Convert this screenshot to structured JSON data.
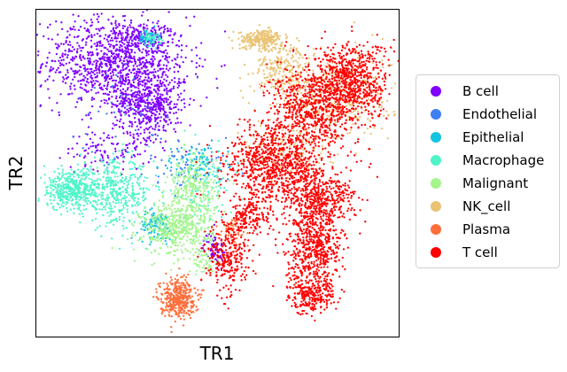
{
  "chart_data": {
    "type": "scatter",
    "title": "",
    "xlabel": "TR1",
    "ylabel": "TR2",
    "xticks": false,
    "yticks": false,
    "grid": false,
    "xlim": [
      0,
      100
    ],
    "ylim": [
      0,
      100
    ],
    "legend_position": "right",
    "legend": [
      {
        "name": "B cell",
        "color": "#7f00ff"
      },
      {
        "name": "Endothelial",
        "color": "#3e7ff4"
      },
      {
        "name": "Epithelial",
        "color": "#13c4e0"
      },
      {
        "name": "Macrophage",
        "color": "#4ff5c9"
      },
      {
        "name": "Malignant",
        "color": "#a4f58e"
      },
      {
        "name": "NK_cell",
        "color": "#e9c374"
      },
      {
        "name": "Plasma",
        "color": "#ff6e3b"
      },
      {
        "name": "T cell",
        "color": "#ff0000"
      }
    ],
    "series": [
      {
        "name": "B cell",
        "color": "#7f00ff",
        "clusters": [
          {
            "cx": 22,
            "cy": 84,
            "sx": 10,
            "sy": 7,
            "n": 1100
          },
          {
            "cx": 31,
            "cy": 71,
            "sx": 5,
            "sy": 5,
            "n": 500
          },
          {
            "cx": 20,
            "cy": 57,
            "sx": 6,
            "sy": 3,
            "n": 110
          },
          {
            "cx": 49,
            "cy": 27,
            "sx": 1.4,
            "sy": 2.5,
            "n": 80
          },
          {
            "cx": 30,
            "cy": 91,
            "sx": 4,
            "sy": 3,
            "n": 120
          }
        ]
      },
      {
        "name": "Endothelial",
        "color": "#3e7ff4",
        "clusters": [
          {
            "cx": 31,
            "cy": 91,
            "sx": 1.2,
            "sy": 1,
            "n": 35
          },
          {
            "cx": 43,
            "cy": 53,
            "sx": 6,
            "sy": 4,
            "n": 70
          },
          {
            "cx": 25,
            "cy": 70,
            "sx": 8,
            "sy": 8,
            "n": 40
          }
        ]
      },
      {
        "name": "Epithelial",
        "color": "#13c4e0",
        "clusters": [
          {
            "cx": 33,
            "cy": 34,
            "sx": 2.5,
            "sy": 2.2,
            "n": 120
          },
          {
            "cx": 45,
            "cy": 53,
            "sx": 5,
            "sy": 3,
            "n": 90
          },
          {
            "cx": 31,
            "cy": 92,
            "sx": 1.2,
            "sy": 1,
            "n": 40
          }
        ]
      },
      {
        "name": "Macrophage",
        "color": "#4ff5c9",
        "clusters": [
          {
            "cx": 10,
            "cy": 45,
            "sx": 5,
            "sy": 3,
            "n": 450
          },
          {
            "cx": 22,
            "cy": 44,
            "sx": 5,
            "sy": 5,
            "n": 380
          },
          {
            "cx": 45,
            "cy": 45,
            "sx": 4.5,
            "sy": 6,
            "n": 110
          },
          {
            "cx": 32,
            "cy": 91,
            "sx": 1.2,
            "sy": 1,
            "n": 45
          }
        ]
      },
      {
        "name": "Malignant",
        "color": "#a4f58e",
        "clusters": [
          {
            "cx": 39,
            "cy": 33,
            "sx": 5,
            "sy": 4,
            "n": 480
          },
          {
            "cx": 43,
            "cy": 45,
            "sx": 3.5,
            "sy": 5,
            "n": 280
          },
          {
            "cx": 47,
            "cy": 22,
            "sx": 2,
            "sy": 2,
            "n": 50
          }
        ]
      },
      {
        "name": "NK_cell",
        "color": "#e9c374",
        "clusters": [
          {
            "cx": 62,
            "cy": 91,
            "sx": 3,
            "sy": 1.4,
            "n": 240
          },
          {
            "cx": 68,
            "cy": 82,
            "sx": 4,
            "sy": 4,
            "n": 220
          },
          {
            "cx": 82,
            "cy": 73,
            "sx": 8,
            "sy": 7,
            "n": 360
          },
          {
            "cx": 70,
            "cy": 57,
            "sx": 6,
            "sy": 5,
            "n": 120
          }
        ]
      },
      {
        "name": "Plasma",
        "color": "#ff6e3b",
        "clusters": [
          {
            "cx": 39,
            "cy": 12,
            "sx": 2.4,
            "sy": 3,
            "n": 380
          },
          {
            "cx": 54,
            "cy": 32,
            "sx": 2,
            "sy": 2.5,
            "n": 60
          }
        ]
      },
      {
        "name": "T cell",
        "color": "#ff0000",
        "clusters": [
          {
            "cx": 87,
            "cy": 78,
            "sx": 5,
            "sy": 6,
            "n": 700
          },
          {
            "cx": 76,
            "cy": 70,
            "sx": 6,
            "sy": 6,
            "n": 650
          },
          {
            "cx": 67,
            "cy": 53,
            "sx": 7,
            "sy": 6,
            "n": 900
          },
          {
            "cx": 78,
            "cy": 42,
            "sx": 5,
            "sy": 4,
            "n": 420
          },
          {
            "cx": 77,
            "cy": 27,
            "sx": 4,
            "sy": 6,
            "n": 550
          },
          {
            "cx": 76,
            "cy": 13,
            "sx": 3,
            "sy": 3,
            "n": 250
          },
          {
            "cx": 53,
            "cy": 24,
            "sx": 3,
            "sy": 5,
            "n": 260
          },
          {
            "cx": 59,
            "cy": 37,
            "sx": 3,
            "sy": 3,
            "n": 180
          }
        ]
      }
    ]
  }
}
